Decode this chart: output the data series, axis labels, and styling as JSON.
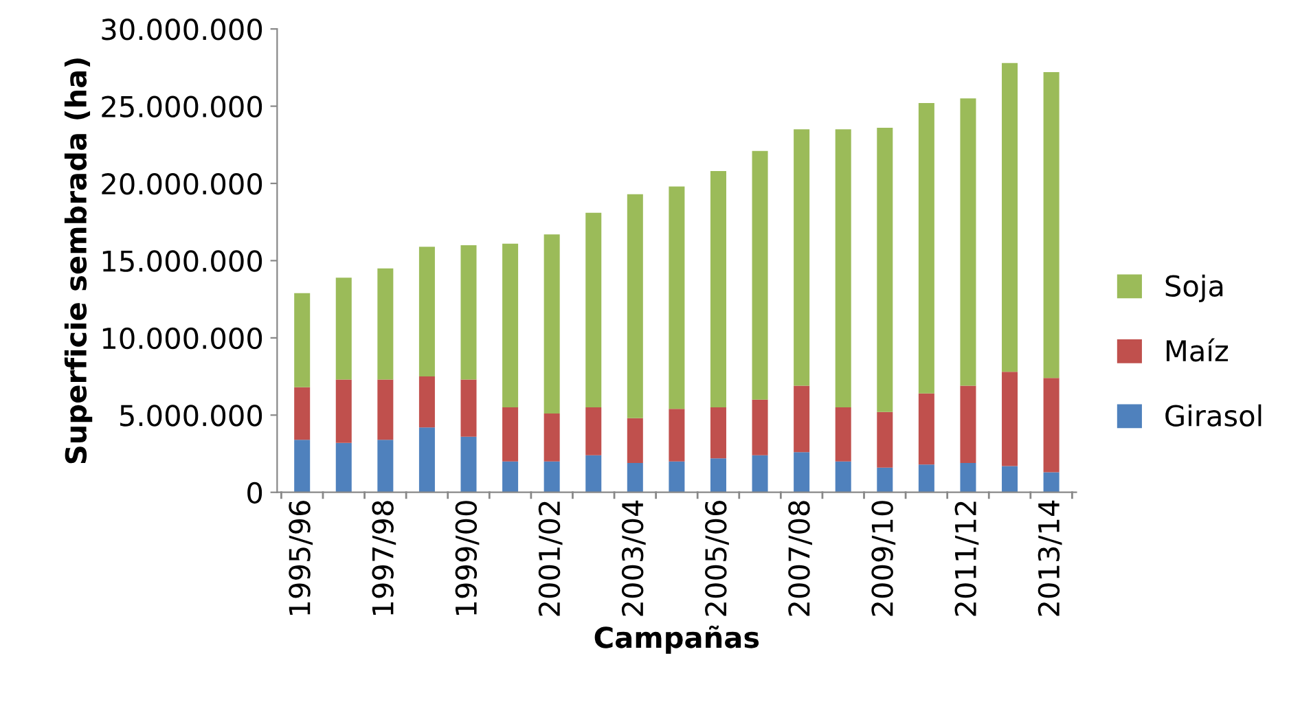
{
  "chart_data": {
    "type": "bar",
    "stacked": true,
    "xlabel": "Campañas",
    "ylabel": "Superficie sembrada (ha)",
    "categories": [
      "1995/96",
      null,
      "1997/98",
      null,
      "1999/00",
      null,
      "2001/02",
      null,
      "2003/04",
      null,
      "2005/06",
      null,
      "2007/08",
      null,
      "2009/10",
      null,
      "2011/12",
      null,
      "2013/14"
    ],
    "series": [
      {
        "name": "Girasol",
        "color": "#4f81bd",
        "values": [
          3400000,
          3200000,
          3400000,
          4200000,
          3600000,
          2000000,
          2000000,
          2400000,
          1900000,
          2000000,
          2200000,
          2400000,
          2600000,
          2000000,
          1600000,
          1800000,
          1900000,
          1700000,
          1300000
        ]
      },
      {
        "name": "Maíz",
        "color": "#c0504d",
        "values": [
          3400000,
          4100000,
          3900000,
          3300000,
          3700000,
          3500000,
          3100000,
          3100000,
          2900000,
          3400000,
          3300000,
          3600000,
          4300000,
          3500000,
          3600000,
          4600000,
          5000000,
          6100000,
          6100000
        ]
      },
      {
        "name": "Soja",
        "color": "#9bbb59",
        "values": [
          6100000,
          6600000,
          7200000,
          8400000,
          8700000,
          10600000,
          11600000,
          12600000,
          14500000,
          14400000,
          15300000,
          16100000,
          16600000,
          18000000,
          18400000,
          18800000,
          18600000,
          20000000,
          19800000
        ]
      }
    ],
    "ylim": [
      0,
      30000000
    ],
    "yticks": [
      0,
      {
        "value": 5000000,
        "label": "5.000.000"
      },
      {
        "value": 10000000,
        "label": "10.000.000"
      },
      {
        "value": 15000000,
        "label": "15.000.000"
      },
      {
        "value": 20000000,
        "label": "20.000.000"
      },
      {
        "value": 25000000,
        "label": "25.000.000"
      },
      {
        "value": 30000000,
        "label": "30.000.000"
      }
    ],
    "grid": false,
    "legend": "right"
  }
}
